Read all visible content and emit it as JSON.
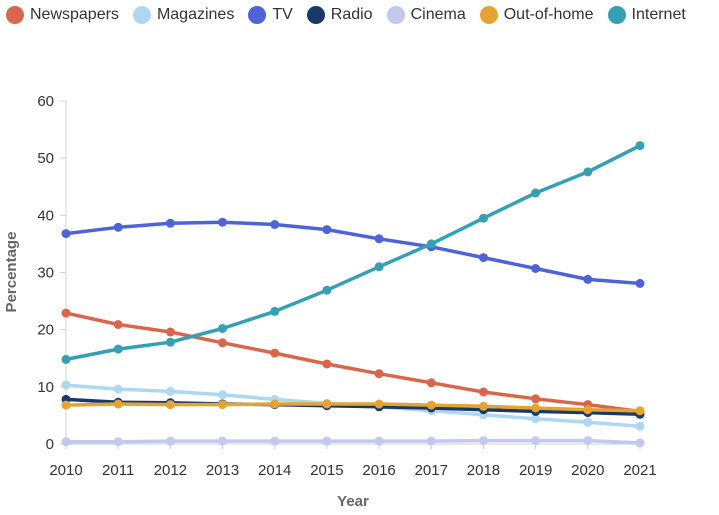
{
  "chart_data": {
    "type": "line",
    "title": "",
    "xlabel": "Year",
    "ylabel": "Percentage",
    "x": [
      "2010",
      "2011",
      "2012",
      "2013",
      "2014",
      "2015",
      "2016",
      "2017",
      "2018",
      "2019",
      "2020",
      "2021"
    ],
    "ylim": [
      0,
      60
    ],
    "yticks": [
      "0",
      "10",
      "20",
      "30",
      "40",
      "50",
      "60"
    ],
    "grid": false,
    "legend_position": "top-left",
    "series": [
      {
        "name": "Newspapers",
        "color": "#d9664a",
        "values": [
          22.9,
          20.9,
          19.6,
          17.7,
          15.9,
          14.0,
          12.3,
          10.7,
          9.1,
          7.9,
          6.9,
          5.7
        ]
      },
      {
        "name": "Magazines",
        "color": "#aed8f2",
        "values": [
          10.3,
          9.6,
          9.2,
          8.6,
          7.8,
          7.1,
          6.5,
          5.8,
          5.1,
          4.4,
          3.8,
          3.1
        ]
      },
      {
        "name": "TV",
        "color": "#4e63d6",
        "values": [
          36.8,
          37.9,
          38.6,
          38.8,
          38.4,
          37.5,
          35.9,
          34.5,
          32.6,
          30.7,
          28.8,
          28.1
        ]
      },
      {
        "name": "Radio",
        "color": "#173a6b",
        "values": [
          7.8,
          7.3,
          7.2,
          7.0,
          6.9,
          6.7,
          6.5,
          6.3,
          6.0,
          5.7,
          5.5,
          5.2
        ]
      },
      {
        "name": "Cinema",
        "color": "#c3c8ee",
        "values": [
          0.4,
          0.4,
          0.5,
          0.5,
          0.5,
          0.5,
          0.5,
          0.5,
          0.6,
          0.6,
          0.6,
          0.2
        ]
      },
      {
        "name": "Out-of-home",
        "color": "#e3a431",
        "values": [
          6.8,
          7.0,
          6.9,
          6.9,
          7.0,
          7.0,
          7.0,
          6.8,
          6.6,
          6.3,
          6.0,
          5.8
        ]
      },
      {
        "name": "Internet",
        "color": "#35a0b3",
        "values": [
          14.8,
          16.6,
          17.8,
          20.2,
          23.2,
          26.9,
          31.0,
          35.0,
          39.5,
          43.9,
          47.6,
          52.2
        ]
      }
    ]
  }
}
